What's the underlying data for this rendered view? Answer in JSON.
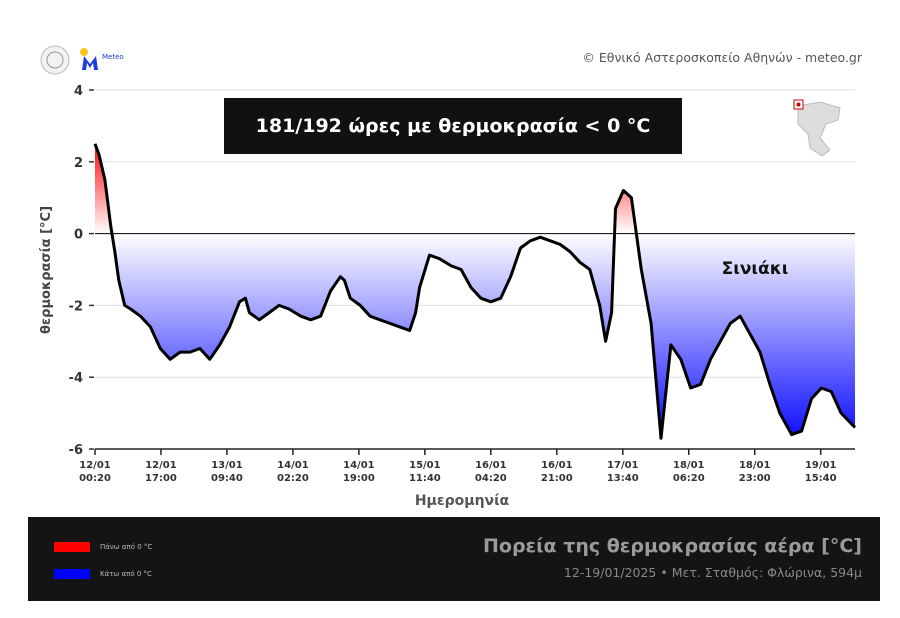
{
  "header": {
    "copyright": "© Εθνικό Αστεροσκοπείο Αθηνών - meteo.gr",
    "logo_text": "Meteo"
  },
  "banner": "181/192 ώρες με θερμοκρασία < 0 °C",
  "footer": {
    "title": "Πορεία της θερμοκρασίας αέρα [°C]",
    "subtitle": "12-19/01/2025 • Μετ. Σταθμός: Φλώρινα, 594μ",
    "legend": [
      {
        "label": "Πάνω από 0 °C",
        "color": "#ff0000"
      },
      {
        "label": "Κάτω από 0 °C",
        "color": "#0000ff"
      }
    ]
  },
  "chart_data": {
    "type": "area",
    "ylabel": "θερμοκρασία [°C]",
    "xlabel": "Ημερομηνία",
    "annotation": "Σινιάκι",
    "ylim": [
      -6,
      4
    ],
    "yticks": [
      -6,
      -4,
      -2,
      0,
      2,
      4
    ],
    "grid": true,
    "xticks": [
      [
        "12/01",
        "00:20"
      ],
      [
        "12/01",
        "17:00"
      ],
      [
        "13/01",
        "09:40"
      ],
      [
        "14/01",
        "02:20"
      ],
      [
        "14/01",
        "19:00"
      ],
      [
        "15/01",
        "11:40"
      ],
      [
        "16/01",
        "04:20"
      ],
      [
        "16/01",
        "21:00"
      ],
      [
        "17/01",
        "13:40"
      ],
      [
        "18/01",
        "06:20"
      ],
      [
        "18/01",
        "23:00"
      ],
      [
        "19/01",
        "15:40"
      ]
    ],
    "xtick_values": [
      "2025-01-12T00:20",
      "2025-01-12T17:00",
      "2025-01-13T09:40",
      "2025-01-14T02:20",
      "2025-01-14T19:00",
      "2025-01-15T11:40",
      "2025-01-16T04:20",
      "2025-01-16T21:00",
      "2025-01-17T13:40",
      "2025-01-18T06:20",
      "2025-01-18T23:00",
      "2025-01-19T15:40"
    ],
    "xlim": [
      "2025-01-12T00:20",
      "2025-01-20T00:20"
    ],
    "colors": {
      "above": "#ff0000",
      "below": "#0000ff",
      "line": "#000000"
    },
    "points": [
      [
        "2025-01-12T00:20",
        2.5
      ],
      [
        "2025-01-12T01:20",
        2.2
      ],
      [
        "2025-01-12T02:50",
        1.5
      ],
      [
        "2025-01-12T04:20",
        0.2
      ],
      [
        "2025-01-12T05:20",
        -0.5
      ],
      [
        "2025-01-12T06:20",
        -1.3
      ],
      [
        "2025-01-12T07:50",
        -2.0
      ],
      [
        "2025-01-12T09:20",
        -2.1
      ],
      [
        "2025-01-12T11:50",
        -2.3
      ],
      [
        "2025-01-12T14:20",
        -2.6
      ],
      [
        "2025-01-12T16:50",
        -3.2
      ],
      [
        "2025-01-12T19:20",
        -3.5
      ],
      [
        "2025-01-12T21:50",
        -3.3
      ],
      [
        "2025-01-13T00:20",
        -3.3
      ],
      [
        "2025-01-13T02:50",
        -3.2
      ],
      [
        "2025-01-13T05:20",
        -3.5
      ],
      [
        "2025-01-13T07:50",
        -3.1
      ],
      [
        "2025-01-13T10:20",
        -2.6
      ],
      [
        "2025-01-13T12:50",
        -1.9
      ],
      [
        "2025-01-13T14:20",
        -1.8
      ],
      [
        "2025-01-13T15:20",
        -2.2
      ],
      [
        "2025-01-13T17:50",
        -2.4
      ],
      [
        "2025-01-13T20:20",
        -2.2
      ],
      [
        "2025-01-13T22:50",
        -2.0
      ],
      [
        "2025-01-14T01:20",
        -2.1
      ],
      [
        "2025-01-14T04:20",
        -2.3
      ],
      [
        "2025-01-14T06:50",
        -2.4
      ],
      [
        "2025-01-14T09:20",
        -2.3
      ],
      [
        "2025-01-14T11:50",
        -1.6
      ],
      [
        "2025-01-14T14:20",
        -1.2
      ],
      [
        "2025-01-14T15:20",
        -1.3
      ],
      [
        "2025-01-14T16:50",
        -1.8
      ],
      [
        "2025-01-14T19:20",
        -2.0
      ],
      [
        "2025-01-14T21:50",
        -2.3
      ],
      [
        "2025-01-15T00:20",
        -2.4
      ],
      [
        "2025-01-15T02:50",
        -2.5
      ],
      [
        "2025-01-15T05:20",
        -2.6
      ],
      [
        "2025-01-15T07:50",
        -2.7
      ],
      [
        "2025-01-15T09:20",
        -2.2
      ],
      [
        "2025-01-15T10:20",
        -1.5
      ],
      [
        "2025-01-15T12:50",
        -0.6
      ],
      [
        "2025-01-15T15:20",
        -0.7
      ],
      [
        "2025-01-15T18:20",
        -0.9
      ],
      [
        "2025-01-15T20:50",
        -1.0
      ],
      [
        "2025-01-15T23:20",
        -1.5
      ],
      [
        "2025-01-16T01:50",
        -1.8
      ],
      [
        "2025-01-16T04:20",
        -1.9
      ],
      [
        "2025-01-16T06:50",
        -1.8
      ],
      [
        "2025-01-16T09:20",
        -1.2
      ],
      [
        "2025-01-16T11:50",
        -0.4
      ],
      [
        "2025-01-16T14:20",
        -0.2
      ],
      [
        "2025-01-16T16:50",
        -0.1
      ],
      [
        "2025-01-16T19:20",
        -0.2
      ],
      [
        "2025-01-16T21:50",
        -0.3
      ],
      [
        "2025-01-17T00:20",
        -0.5
      ],
      [
        "2025-01-17T02:50",
        -0.8
      ],
      [
        "2025-01-17T05:20",
        -1.0
      ],
      [
        "2025-01-17T07:50",
        -2.0
      ],
      [
        "2025-01-17T09:20",
        -3.0
      ],
      [
        "2025-01-17T10:50",
        -2.2
      ],
      [
        "2025-01-17T11:50",
        0.7
      ],
      [
        "2025-01-17T13:50",
        1.2
      ],
      [
        "2025-01-17T15:50",
        1.0
      ],
      [
        "2025-01-17T18:20",
        -1.0
      ],
      [
        "2025-01-17T20:50",
        -2.5
      ],
      [
        "2025-01-17T23:20",
        -5.7
      ],
      [
        "2025-01-18T01:50",
        -3.1
      ],
      [
        "2025-01-18T04:20",
        -3.5
      ],
      [
        "2025-01-18T06:50",
        -4.3
      ],
      [
        "2025-01-18T09:20",
        -4.2
      ],
      [
        "2025-01-18T11:50",
        -3.5
      ],
      [
        "2025-01-18T14:20",
        -3.0
      ],
      [
        "2025-01-18T16:50",
        -2.5
      ],
      [
        "2025-01-18T19:20",
        -2.3
      ],
      [
        "2025-01-18T21:50",
        -2.8
      ],
      [
        "2025-01-19T00:20",
        -3.3
      ],
      [
        "2025-01-19T02:50",
        -4.2
      ],
      [
        "2025-01-19T05:20",
        -5.0
      ],
      [
        "2025-01-19T08:20",
        -5.6
      ],
      [
        "2025-01-19T10:50",
        -5.5
      ],
      [
        "2025-01-19T13:20",
        -4.6
      ],
      [
        "2025-01-19T15:50",
        -4.3
      ],
      [
        "2025-01-19T18:20",
        -4.4
      ],
      [
        "2025-01-19T20:50",
        -5.0
      ],
      [
        "2025-01-20T00:20",
        -5.4
      ]
    ]
  }
}
